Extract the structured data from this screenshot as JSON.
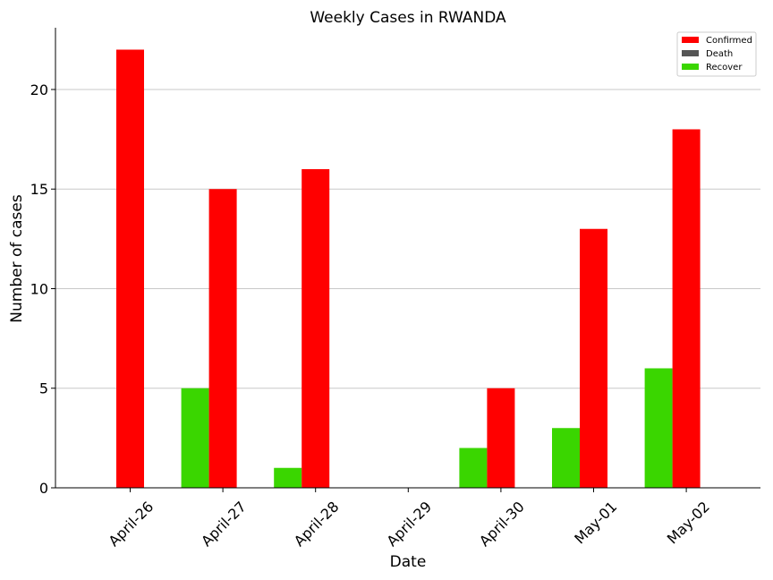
{
  "chart_data": {
    "type": "bar",
    "title": "Weekly Cases in RWANDA",
    "xlabel": "Date",
    "ylabel": "Number of cases",
    "categories": [
      "April-26",
      "April-27",
      "April-28",
      "April-29",
      "April-30",
      "May-01",
      "May-02"
    ],
    "series": [
      {
        "name": "Confirmed",
        "color": "#ff0000",
        "values": [
          22,
          15,
          16,
          0,
          5,
          13,
          18
        ]
      },
      {
        "name": "Death",
        "color": "#555555",
        "values": [
          0,
          0,
          0,
          0,
          0,
          0,
          0
        ]
      },
      {
        "name": "Recover",
        "color": "#3ad600",
        "values": [
          0,
          5,
          1,
          0,
          2,
          3,
          6
        ]
      }
    ],
    "ylim": [
      0,
      23.1
    ],
    "yticks": [
      0,
      5,
      10,
      15,
      20
    ],
    "grid": "y",
    "legend": "top-right"
  }
}
